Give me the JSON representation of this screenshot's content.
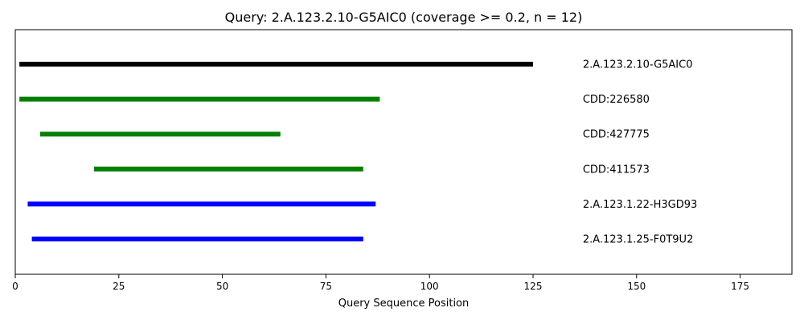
{
  "chart_data": {
    "type": "bar",
    "orientation": "horizontal-range",
    "title": "Query: 2.A.123.2.10-G5AIC0 (coverage >= 0.2, n = 12)",
    "xlabel": "Query Sequence Position",
    "ylabel": "",
    "xlim": [
      0,
      187.5
    ],
    "xticks": [
      0,
      25,
      50,
      75,
      100,
      125,
      150,
      175
    ],
    "grid": false,
    "label_x": 137,
    "series": [
      {
        "label": "2.A.123.2.10-G5AIC0",
        "start": 1,
        "end": 125,
        "color": "#000000"
      },
      {
        "label": "CDD:226580",
        "start": 1,
        "end": 88,
        "color": "#008000"
      },
      {
        "label": "CDD:427775",
        "start": 6,
        "end": 64,
        "color": "#008000"
      },
      {
        "label": "CDD:411573",
        "start": 19,
        "end": 84,
        "color": "#008000"
      },
      {
        "label": "2.A.123.1.22-H3GD93",
        "start": 3,
        "end": 87,
        "color": "#0000ff"
      },
      {
        "label": "2.A.123.1.25-F0T9U2",
        "start": 4,
        "end": 84,
        "color": "#0000ff"
      }
    ]
  }
}
